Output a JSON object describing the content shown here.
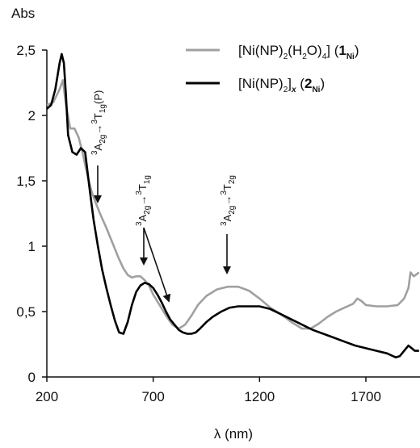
{
  "chart_data": {
    "type": "line",
    "ylabel": "Abs",
    "xlabel": "λ (nm)",
    "xlim": [
      200,
      1950
    ],
    "ylim": [
      0,
      2.5
    ],
    "x_ticks": [
      "200",
      "700",
      "1200",
      "1700"
    ],
    "x_tick_values": [
      200,
      700,
      1200,
      1700
    ],
    "y_ticks": [
      "0",
      "0,5",
      "1",
      "1,5",
      "2",
      "2,5"
    ],
    "y_tick_values": [
      0,
      0.5,
      1,
      1.5,
      2,
      2.5
    ],
    "grid": false,
    "legend_position": "top-right",
    "series": [
      {
        "name": "[Ni(NP)2(H2O)4] (1Ni)",
        "color": "#a0a0a0",
        "x": [
          200,
          230,
          260,
          275,
          290,
          310,
          330,
          350,
          370,
          390,
          410,
          430,
          450,
          480,
          510,
          540,
          560,
          580,
          600,
          620,
          640,
          660,
          680,
          700,
          730,
          760,
          790,
          820,
          850,
          880,
          910,
          950,
          1000,
          1050,
          1100,
          1150,
          1200,
          1250,
          1300,
          1350,
          1400,
          1440,
          1480,
          1520,
          1560,
          1600,
          1640,
          1660,
          1680,
          1700,
          1750,
          1800,
          1850,
          1880,
          1900,
          1910,
          1925,
          1950
        ],
        "y": [
          2.08,
          2.1,
          2.2,
          2.27,
          2.08,
          1.9,
          1.9,
          1.83,
          1.7,
          1.55,
          1.42,
          1.33,
          1.25,
          1.14,
          1.02,
          0.9,
          0.83,
          0.78,
          0.76,
          0.77,
          0.77,
          0.74,
          0.7,
          0.63,
          0.55,
          0.47,
          0.4,
          0.37,
          0.4,
          0.47,
          0.55,
          0.62,
          0.67,
          0.69,
          0.69,
          0.66,
          0.6,
          0.53,
          0.48,
          0.42,
          0.37,
          0.37,
          0.41,
          0.46,
          0.5,
          0.53,
          0.56,
          0.6,
          0.58,
          0.55,
          0.54,
          0.54,
          0.55,
          0.6,
          0.68,
          0.8,
          0.77,
          0.8
        ]
      },
      {
        "name": "[Ni(NP)2]x (2Ni)",
        "color": "#000000",
        "x": [
          200,
          220,
          240,
          260,
          270,
          280,
          290,
          300,
          320,
          340,
          360,
          380,
          400,
          420,
          440,
          460,
          480,
          500,
          520,
          540,
          560,
          580,
          600,
          620,
          640,
          660,
          680,
          700,
          720,
          740,
          760,
          780,
          800,
          820,
          840,
          860,
          880,
          900,
          920,
          950,
          980,
          1020,
          1060,
          1100,
          1150,
          1200,
          1250,
          1300,
          1350,
          1400,
          1450,
          1500,
          1550,
          1600,
          1650,
          1700,
          1750,
          1800,
          1840,
          1860,
          1880,
          1900,
          1930,
          1950
        ],
        "y": [
          2.05,
          2.08,
          2.2,
          2.4,
          2.47,
          2.4,
          2.15,
          1.85,
          1.72,
          1.7,
          1.75,
          1.72,
          1.45,
          1.2,
          1.0,
          0.82,
          0.68,
          0.55,
          0.43,
          0.34,
          0.33,
          0.42,
          0.55,
          0.65,
          0.7,
          0.72,
          0.71,
          0.68,
          0.63,
          0.57,
          0.5,
          0.44,
          0.4,
          0.36,
          0.34,
          0.33,
          0.33,
          0.34,
          0.37,
          0.42,
          0.46,
          0.5,
          0.53,
          0.54,
          0.54,
          0.54,
          0.52,
          0.48,
          0.44,
          0.4,
          0.36,
          0.33,
          0.3,
          0.27,
          0.24,
          0.22,
          0.2,
          0.18,
          0.15,
          0.16,
          0.2,
          0.24,
          0.2,
          0.2
        ]
      }
    ],
    "legend": [
      {
        "label": "[Ni(NP)",
        "sub1": "2",
        "mid": "(H",
        "sub2": "2",
        "mid2": "O)",
        "sub3": "4",
        "end": "] (",
        "bold": "1",
        "boldsub": "Ni",
        "close": ")"
      },
      {
        "label": "[Ni(NP)",
        "sub1": "2",
        "end": "]",
        "italic": "x",
        "paren": " (",
        "bold": "2",
        "boldsub": "Ni",
        "close": ")"
      }
    ],
    "annotations": [
      {
        "pre": "3",
        "a": "A",
        "asub": "2g",
        "arrow": "→",
        "pre2": "3",
        "t": "T",
        "tsub": "1g",
        "tail": "(P)"
      },
      {
        "pre": "3",
        "a": "A",
        "asub": "2g",
        "arrow": "→",
        "pre2": "3",
        "t": "T",
        "tsub": "1g",
        "tail": ""
      },
      {
        "pre": "3",
        "a": "A",
        "asub": "2g",
        "arrow": "→",
        "pre2": "3",
        "t": "T",
        "tsub": "2g",
        "tail": ""
      }
    ]
  }
}
